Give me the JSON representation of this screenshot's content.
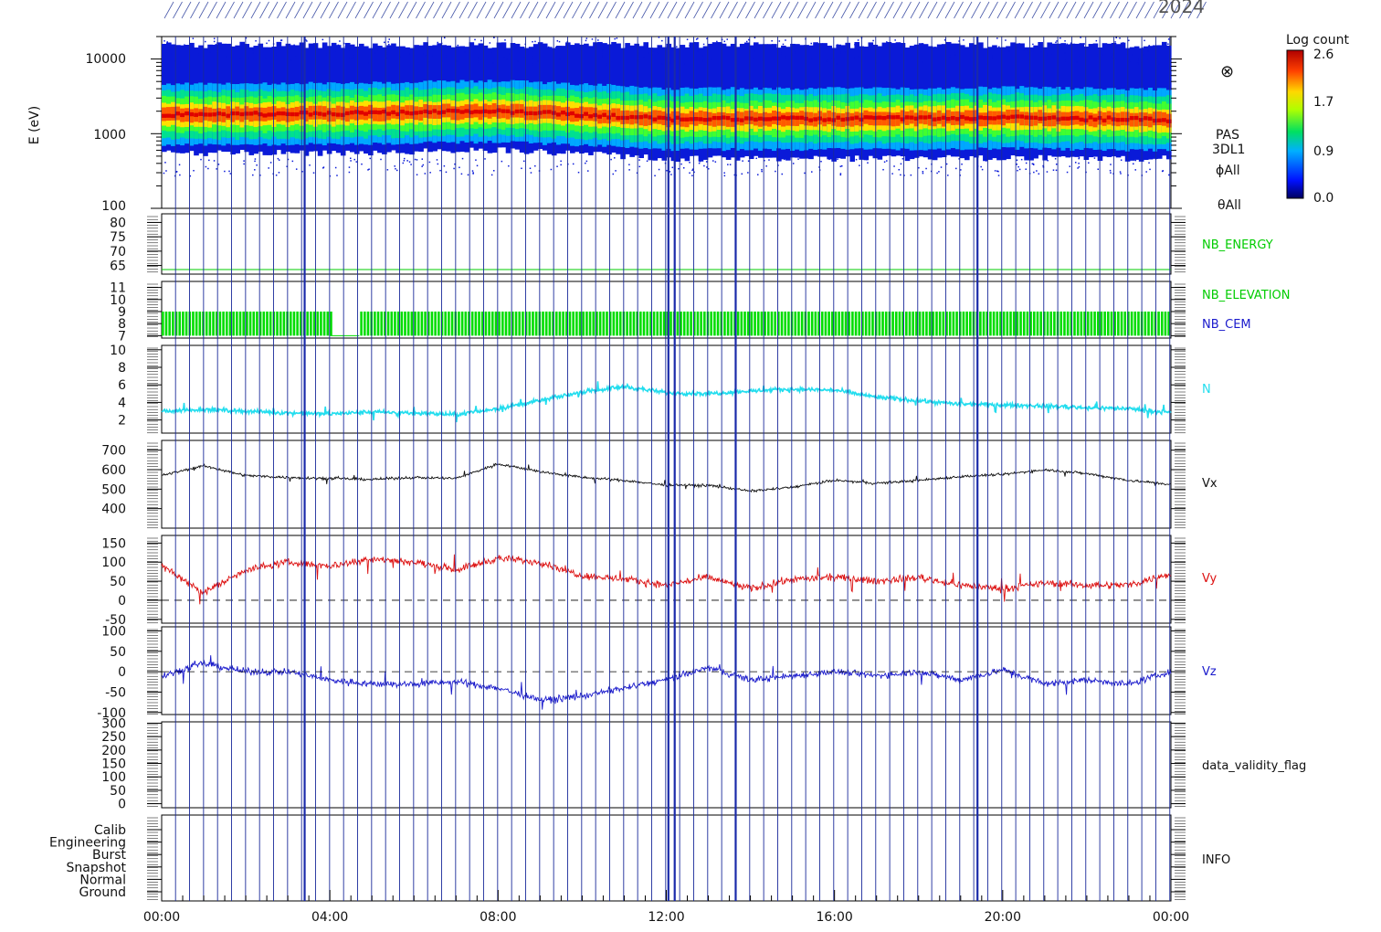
{
  "header": {
    "date_fragment": "2024"
  },
  "spectrogram": {
    "ylabel": "E (eV)",
    "yticks": [
      "10000",
      "1000",
      "100"
    ],
    "colorbar_title": "Log count",
    "colorbar_ticks": [
      "2.6",
      "1.7",
      "0.9",
      "0.0"
    ],
    "instrument_labels": [
      "PAS",
      "3DL1",
      "ϕAll",
      "θAll"
    ],
    "symbol": "⊗"
  },
  "panels": [
    {
      "id": "nb_energy",
      "label": "NB_ENERGY",
      "label_color": "#00cc00",
      "yticks": [
        "80",
        "75",
        "70",
        "65"
      ]
    },
    {
      "id": "nb_elev",
      "label": "NB_ELEVATION",
      "label2": "NB_CEM",
      "label_color": "#00cc00",
      "label2_color": "#1a1acc",
      "yticks": [
        "11",
        "10",
        "9",
        "8",
        "7"
      ]
    },
    {
      "id": "n",
      "label": "N",
      "label_color": "#22ddee",
      "yticks": [
        "10",
        "8",
        "6",
        "4",
        "2"
      ]
    },
    {
      "id": "vx",
      "label": "Vx",
      "label_color": "#111111",
      "yticks": [
        "700",
        "600",
        "500",
        "400"
      ]
    },
    {
      "id": "vy",
      "label": "Vy",
      "label_color": "#dd1111",
      "yticks": [
        "150",
        "100",
        "50",
        "0",
        "-50"
      ]
    },
    {
      "id": "vz",
      "label": "Vz",
      "label_color": "#1a1acc",
      "yticks": [
        "100",
        "50",
        "0",
        "-50",
        "-100"
      ]
    },
    {
      "id": "flag",
      "label": "data_validity_flag",
      "label_color": "#111111",
      "yticks": [
        "300",
        "250",
        "200",
        "150",
        "100",
        "50",
        "0"
      ]
    },
    {
      "id": "info",
      "label": "INFO",
      "label_color": "#111111",
      "yticks": [
        "Calib",
        "Engineering",
        "Burst",
        "Snapshot",
        "Normal",
        "Ground"
      ]
    }
  ],
  "xticks": [
    "00:00",
    "04:00",
    "08:00",
    "12:00",
    "16:00",
    "20:00",
    "00:00"
  ],
  "chart_data": [
    {
      "type": "heatmap",
      "title": "",
      "ylabel": "E (eV)",
      "yscale": "log",
      "ylim": [
        100,
        20000
      ],
      "colorbar": {
        "label": "Log count",
        "range": [
          0.0,
          2.6
        ]
      },
      "x": [
        "00:00",
        "04:00",
        "08:00",
        "12:00",
        "16:00",
        "20:00",
        "24:00"
      ],
      "peak_energy_eV": [
        1700,
        1750,
        1900,
        1500,
        1500,
        1550,
        1450
      ],
      "band_low_eV": [
        500,
        500,
        550,
        420,
        420,
        430,
        420
      ]
    },
    {
      "type": "line",
      "series": [
        {
          "name": "N",
          "x": [
            "00:00",
            "01:00",
            "02:00",
            "03:00",
            "04:00",
            "05:00",
            "06:00",
            "07:00",
            "08:00",
            "09:00",
            "10:00",
            "11:00",
            "12:00",
            "13:00",
            "14:00",
            "15:00",
            "16:00",
            "17:00",
            "18:00",
            "19:00",
            "20:00",
            "21:00",
            "22:00",
            "23:00",
            "24:00"
          ],
          "values": [
            3,
            3.2,
            3,
            2.8,
            2.7,
            2.9,
            2.8,
            2.6,
            3.3,
            4.2,
            5.2,
            5.8,
            5.1,
            5.0,
            5.3,
            5.5,
            5.4,
            4.6,
            4.2,
            3.8,
            3.7,
            3.6,
            3.4,
            3.3,
            2.8
          ]
        }
      ],
      "ylim": [
        0,
        10
      ]
    },
    {
      "type": "line",
      "series": [
        {
          "name": "Vx",
          "x": [
            "00:00",
            "01:00",
            "02:00",
            "03:00",
            "04:00",
            "05:00",
            "06:00",
            "07:00",
            "08:00",
            "09:00",
            "10:00",
            "11:00",
            "12:00",
            "13:00",
            "14:00",
            "15:00",
            "16:00",
            "17:00",
            "18:00",
            "19:00",
            "20:00",
            "21:00",
            "22:00",
            "23:00",
            "24:00"
          ],
          "values": [
            570,
            620,
            570,
            560,
            555,
            550,
            560,
            555,
            630,
            590,
            560,
            545,
            520,
            520,
            490,
            510,
            545,
            530,
            545,
            565,
            575,
            600,
            580,
            545,
            525
          ]
        }
      ],
      "ylim": [
        300,
        750
      ]
    },
    {
      "type": "line",
      "series": [
        {
          "name": "Vy",
          "x": [
            "00:00",
            "01:00",
            "02:00",
            "03:00",
            "04:00",
            "05:00",
            "06:00",
            "07:00",
            "08:00",
            "09:00",
            "10:00",
            "11:00",
            "12:00",
            "13:00",
            "14:00",
            "15:00",
            "16:00",
            "17:00",
            "18:00",
            "19:00",
            "20:00",
            "21:00",
            "22:00",
            "23:00",
            "24:00"
          ],
          "values": [
            90,
            20,
            80,
            100,
            90,
            110,
            100,
            80,
            110,
            100,
            65,
            55,
            40,
            60,
            30,
            55,
            60,
            50,
            60,
            40,
            30,
            45,
            40,
            40,
            70
          ]
        }
      ],
      "ylim": [
        -60,
        170
      ]
    },
    {
      "type": "line",
      "series": [
        {
          "name": "Vz",
          "x": [
            "00:00",
            "01:00",
            "02:00",
            "03:00",
            "04:00",
            "05:00",
            "06:00",
            "07:00",
            "08:00",
            "09:00",
            "10:00",
            "11:00",
            "12:00",
            "13:00",
            "14:00",
            "15:00",
            "16:00",
            "17:00",
            "18:00",
            "19:00",
            "20:00",
            "21:00",
            "22:00",
            "23:00",
            "24:00"
          ],
          "values": [
            -10,
            20,
            0,
            0,
            -20,
            -30,
            -30,
            -25,
            -40,
            -70,
            -60,
            -40,
            -20,
            10,
            -20,
            -10,
            0,
            -10,
            0,
            -20,
            5,
            -30,
            -20,
            -30,
            0
          ]
        }
      ],
      "ylim": [
        -105,
        110
      ]
    }
  ]
}
